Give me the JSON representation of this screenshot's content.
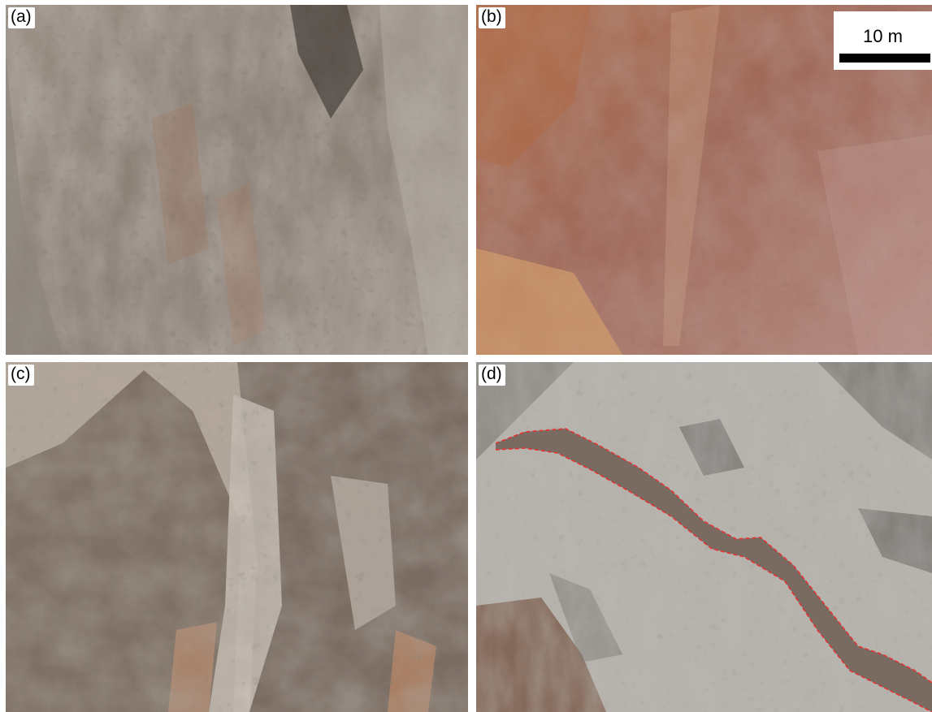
{
  "figure": {
    "panels": [
      {
        "id": "a",
        "label": "(a)",
        "color": "#8a7d72"
      },
      {
        "id": "b",
        "label": "(b)",
        "color": "#a46a58"
      },
      {
        "id": "c",
        "label": "(c)",
        "color": "#8c7d70"
      },
      {
        "id": "d",
        "label": "(d)",
        "color": "#b0aba4"
      }
    ],
    "scale_bar": {
      "text": "10 m"
    },
    "annotation_color": "#e63232"
  }
}
